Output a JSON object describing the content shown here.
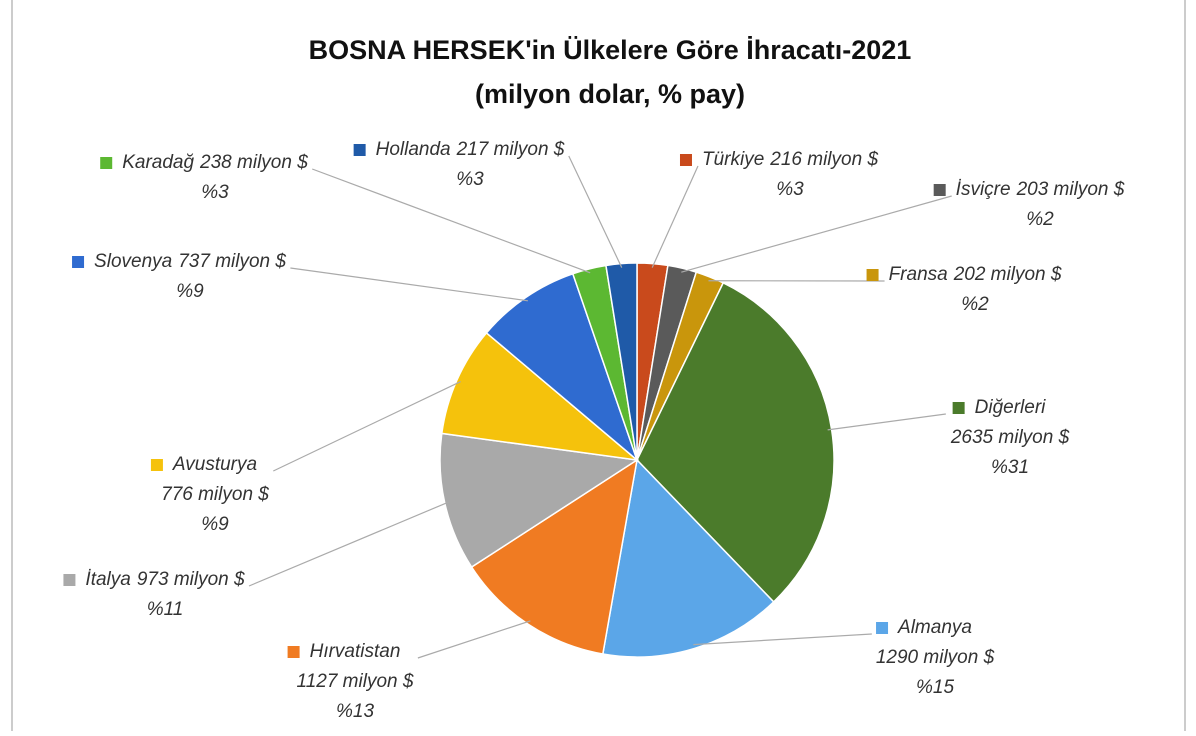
{
  "chart_data": {
    "type": "pie",
    "title": "BOSNA HERSEK'in Ülkelere Göre İhracatı-2021",
    "subtitle": "(milyon dolar, % pay)",
    "categories": [
      "Türkiye",
      "İsviçre",
      "Fransa",
      "Diğerleri",
      "Almanya",
      "Hırvatistan",
      "İtalya",
      "Avusturya",
      "Slovenya",
      "Karadağ",
      "Hollanda"
    ],
    "values": [
      216,
      203,
      202,
      2635,
      1290,
      1127,
      973,
      776,
      737,
      238,
      217
    ],
    "value_labels": [
      "216 milyon $",
      "203 milyon $",
      "202 milyon $",
      "2635 milyon $",
      "1290 milyon $",
      "1127 milyon $",
      "973 milyon $",
      "776 milyon $",
      "737 milyon $",
      "238 milyon $",
      "217 milyon $"
    ],
    "percentages": [
      3,
      2,
      2,
      31,
      15,
      13,
      11,
      9,
      9,
      3,
      3
    ],
    "percentage_labels": [
      "%3",
      "%2",
      "%2",
      "%31",
      "%15",
      "%13",
      "%11",
      "%9",
      "%9",
      "%3",
      "%3"
    ],
    "colors": [
      "#c94a1c",
      "#5a5a5a",
      "#c9960c",
      "#4b7b2b",
      "#5ba6e8",
      "#f07b22",
      "#a9a9a9",
      "#f5c20c",
      "#2f6bd0",
      "#5cb832",
      "#1f5aa8"
    ]
  }
}
